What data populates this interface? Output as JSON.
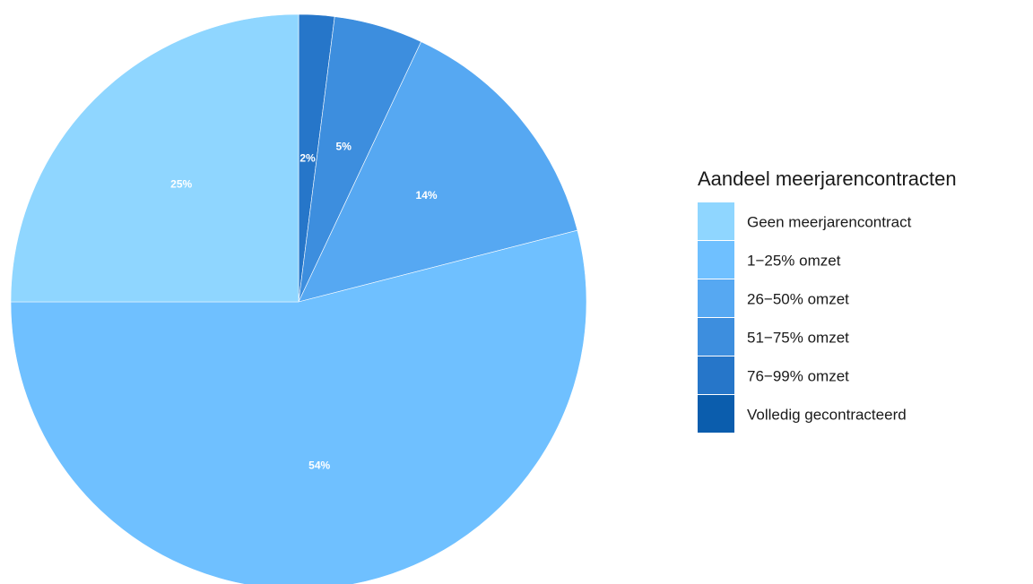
{
  "chart_data": {
    "type": "pie",
    "legend_title": "Aandeel meerjarencontracten",
    "legend_position": "right",
    "categories": [
      "Geen meerjarencontract",
      "1−25% omzet",
      "26−50% omzet",
      "51−75% omzet",
      "76−99% omzet",
      "Volledig gecontracteerd"
    ],
    "values": [
      25,
      54,
      14,
      5,
      2,
      0
    ],
    "labels": [
      "25%",
      "54%",
      "14%",
      "5%",
      "2%",
      ""
    ],
    "colors": [
      "#8fd6ff",
      "#6fc0ff",
      "#56a8f2",
      "#3d8ede",
      "#2676c9",
      "#0b5dad"
    ],
    "slice_order": [
      4,
      3,
      2,
      1,
      0
    ],
    "start_angle_deg": 0,
    "direction": "clockwise"
  }
}
